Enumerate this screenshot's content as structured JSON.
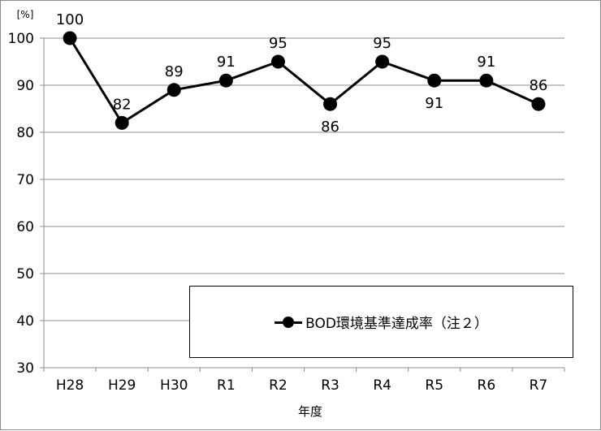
{
  "chart_data": {
    "type": "line",
    "unit_label": "[%]",
    "xlabel": "年度",
    "ylabel": "",
    "categories": [
      "H28",
      "H29",
      "H30",
      "R1",
      "R2",
      "R3",
      "R4",
      "R5",
      "R6",
      "R7"
    ],
    "series": [
      {
        "name": "BOD環境基準達成率（注２）",
        "values": [
          100,
          82,
          89,
          91,
          95,
          86,
          95,
          91,
          91,
          86
        ],
        "color": "#000000"
      }
    ],
    "label_positions": [
      "above",
      "above",
      "above",
      "above",
      "above",
      "below",
      "above",
      "below",
      "above",
      "above"
    ],
    "ylim": [
      30,
      100
    ],
    "yticks": [
      30,
      40,
      50,
      60,
      70,
      80,
      90,
      100
    ],
    "grid": true,
    "legend": "inside-bottom-right"
  }
}
